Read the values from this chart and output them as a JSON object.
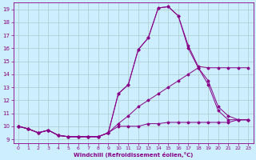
{
  "xlabel": "Windchill (Refroidissement éolien,°C)",
  "xlim": [
    -0.5,
    23.5
  ],
  "ylim": [
    8.7,
    19.5
  ],
  "yticks": [
    9,
    10,
    11,
    12,
    13,
    14,
    15,
    16,
    17,
    18,
    19
  ],
  "xticks": [
    0,
    1,
    2,
    3,
    4,
    5,
    6,
    7,
    8,
    9,
    10,
    11,
    12,
    13,
    14,
    15,
    16,
    17,
    18,
    19,
    20,
    21,
    22,
    23
  ],
  "line_color": "#880088",
  "bg_color": "#cceeff",
  "grid_color": "#aacccc",
  "line1": [
    10.0,
    9.8,
    9.5,
    9.7,
    9.3,
    9.2,
    9.2,
    9.2,
    9.2,
    9.5,
    12.5,
    13.2,
    15.9,
    16.8,
    19.1,
    19.2,
    18.5,
    16.0,
    14.5,
    13.2,
    11.2,
    10.5,
    10.5,
    10.5
  ],
  "line2": [
    10.0,
    9.8,
    9.5,
    9.7,
    9.3,
    9.2,
    9.2,
    9.2,
    9.2,
    9.5,
    12.5,
    13.2,
    15.9,
    16.8,
    19.1,
    19.2,
    18.5,
    16.2,
    14.6,
    14.5,
    14.5,
    14.5,
    14.5,
    14.5
  ],
  "line3": [
    10.0,
    9.8,
    9.5,
    9.7,
    9.3,
    9.2,
    9.2,
    9.2,
    9.2,
    9.5,
    10.2,
    10.8,
    11.5,
    12.0,
    12.5,
    13.0,
    13.5,
    14.0,
    14.5,
    13.5,
    11.5,
    10.8,
    10.5,
    10.5
  ],
  "line4": [
    10.0,
    9.8,
    9.5,
    9.7,
    9.3,
    9.2,
    9.2,
    9.2,
    9.2,
    9.5,
    10.0,
    10.0,
    10.0,
    10.2,
    10.2,
    10.3,
    10.3,
    10.3,
    10.3,
    10.3,
    10.3,
    10.3,
    10.5,
    10.5
  ]
}
